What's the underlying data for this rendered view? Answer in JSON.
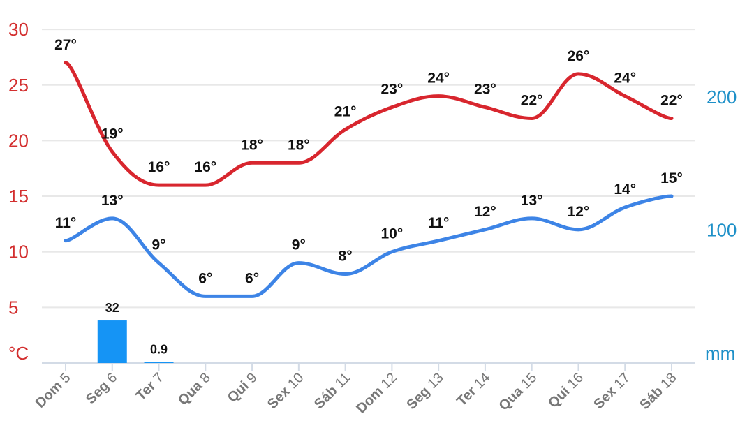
{
  "chart_data": {
    "type": "line",
    "categories": [
      {
        "day": "Dom",
        "date": "5"
      },
      {
        "day": "Seg",
        "date": "6"
      },
      {
        "day": "Ter",
        "date": "7"
      },
      {
        "day": "Qua",
        "date": "8"
      },
      {
        "day": "Qui",
        "date": "9"
      },
      {
        "day": "Sex",
        "date": "10"
      },
      {
        "day": "Sáb",
        "date": "11"
      },
      {
        "day": "Dom",
        "date": "12"
      },
      {
        "day": "Seg",
        "date": "13"
      },
      {
        "day": "Ter",
        "date": "14"
      },
      {
        "day": "Qua",
        "date": "15"
      },
      {
        "day": "Qui",
        "date": "16"
      },
      {
        "day": "Sex",
        "date": "17"
      },
      {
        "day": "Sáb",
        "date": "18"
      }
    ],
    "series": [
      {
        "color": "#d8262e",
        "axis": "left",
        "values": [
          27,
          19,
          16,
          16,
          18,
          18,
          21,
          23,
          24,
          23,
          22,
          26,
          24,
          22
        ],
        "labels": [
          "27°",
          "19°",
          "16°",
          "16°",
          "18°",
          "18°",
          "21°",
          "23°",
          "24°",
          "23°",
          "22°",
          "26°",
          "24°",
          "22°"
        ]
      },
      {
        "color": "#3d84e6",
        "axis": "left",
        "values": [
          11,
          13,
          9,
          6,
          6,
          9,
          8,
          10,
          11,
          12,
          13,
          12,
          14,
          15
        ],
        "labels": [
          "11°",
          "13°",
          "9°",
          "6°",
          "6°",
          "9°",
          "8°",
          "10°",
          "11°",
          "12°",
          "13°",
          "12°",
          "14°",
          "15°"
        ]
      }
    ],
    "bars": {
      "color": "#1594f5",
      "axis": "right",
      "values": [
        null,
        32,
        0.9,
        null,
        null,
        null,
        null,
        null,
        null,
        null,
        null,
        null,
        null,
        null
      ],
      "labels": [
        "",
        "32",
        "0.9",
        "",
        "",
        "",
        "",
        "",
        "",
        "",
        "",
        "",
        "",
        ""
      ]
    },
    "left_axis": {
      "unit": "°C",
      "ticks": [
        "5",
        "10",
        "15",
        "20",
        "25",
        "30"
      ],
      "range": [
        0,
        30
      ],
      "color": "#d32f2f"
    },
    "right_axis": {
      "unit": "mm",
      "ticks": [
        "100",
        "200"
      ],
      "range": [
        0,
        250
      ],
      "color": "#1e90c8"
    },
    "grid": true
  }
}
